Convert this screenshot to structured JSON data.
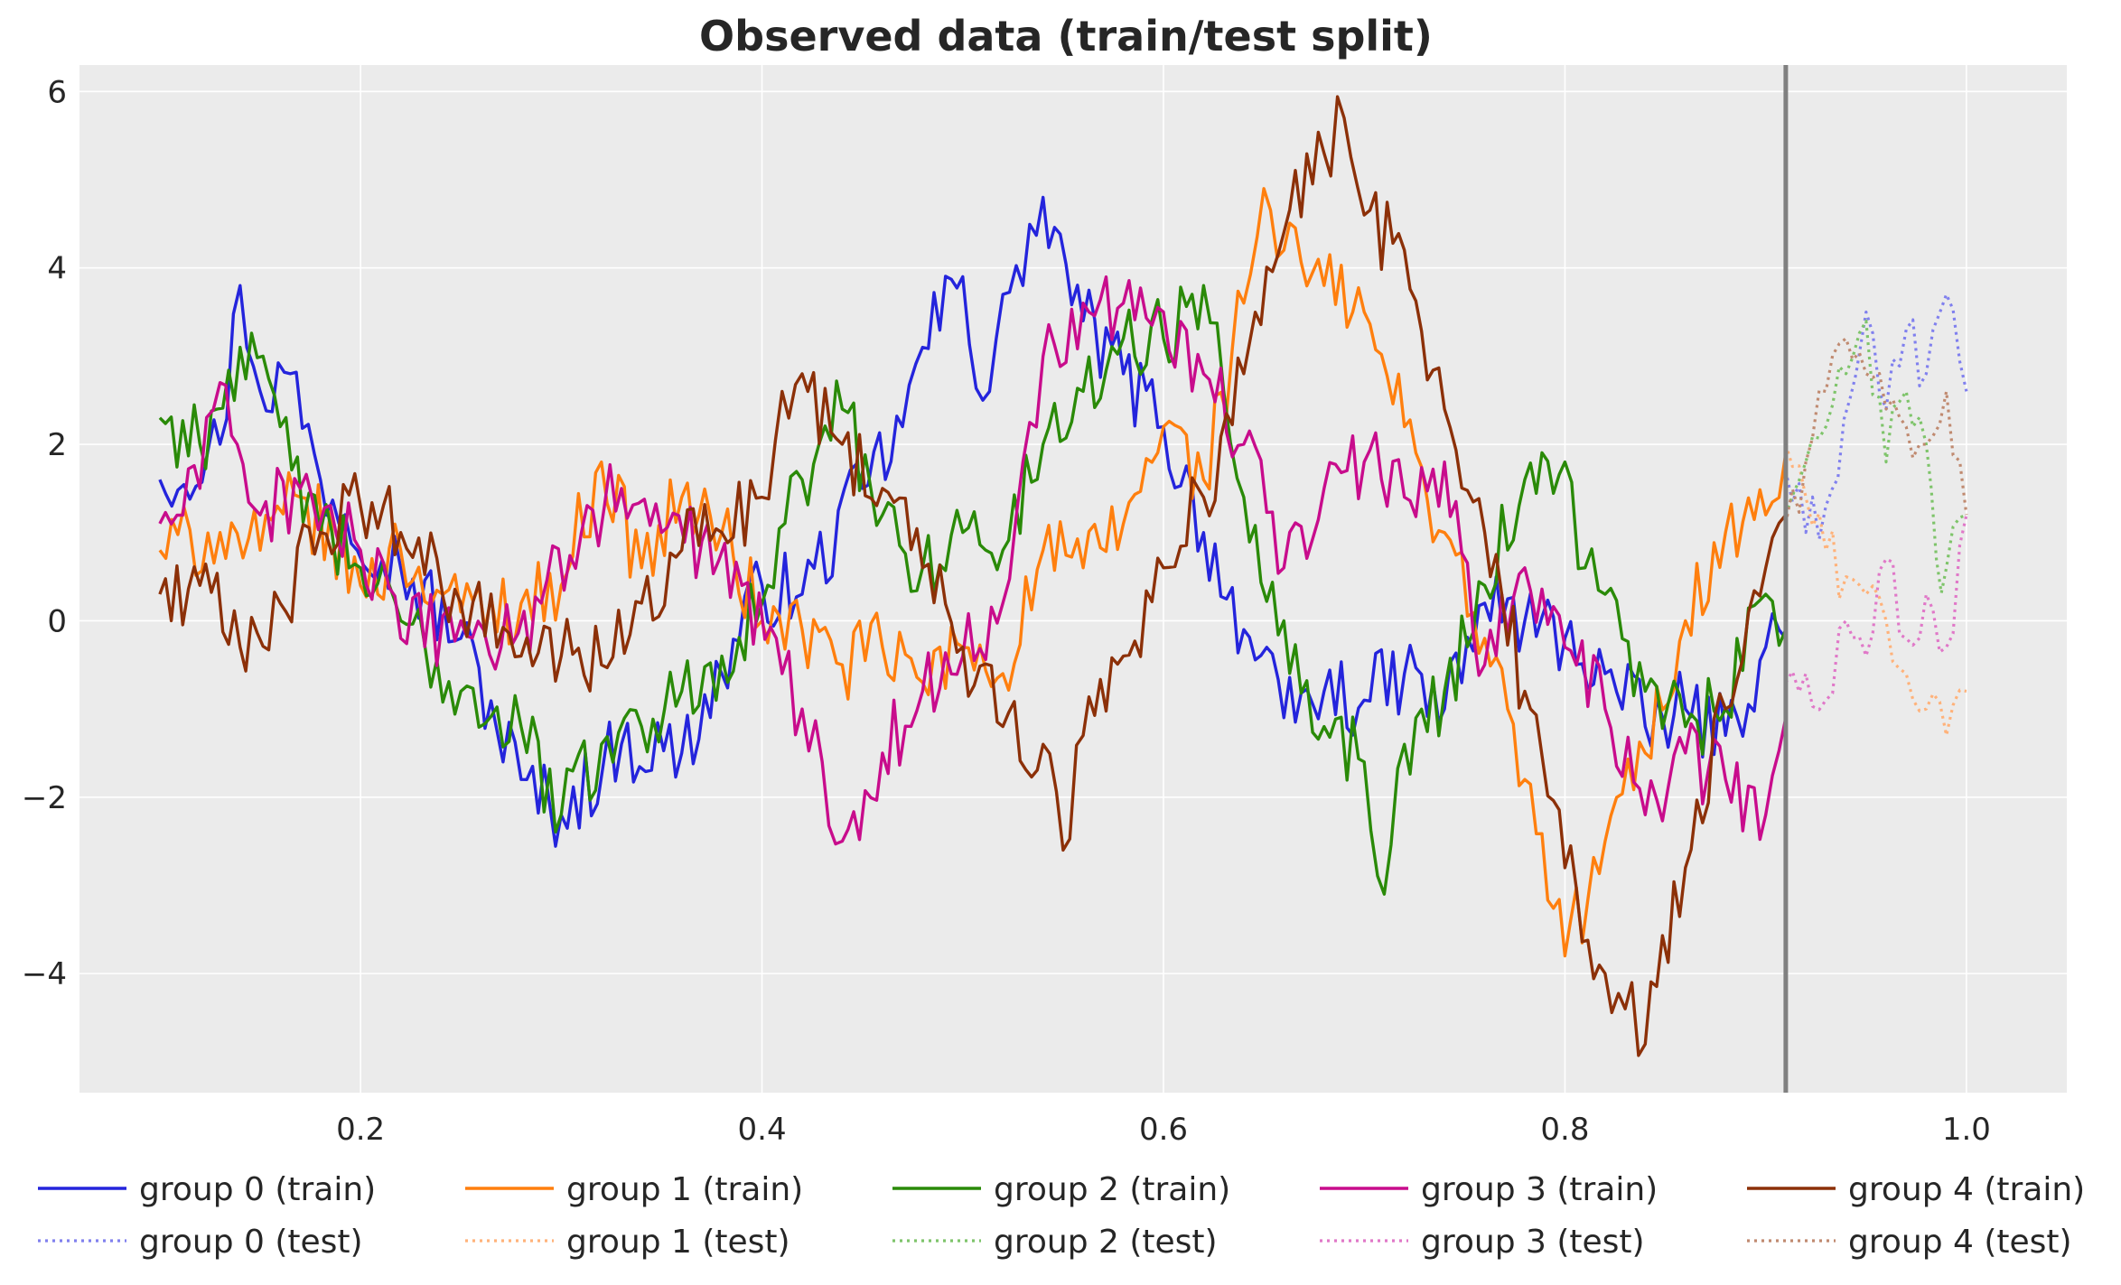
{
  "chart_data": {
    "type": "line",
    "title": "Observed data (train/test split)",
    "xlabel": "",
    "ylabel": "",
    "xlim": [
      0.06,
      1.05
    ],
    "ylim": [
      -5.35,
      6.3
    ],
    "xticks": [
      0.2,
      0.4,
      0.6,
      0.8,
      1.0
    ],
    "xtick_labels": [
      "0.2",
      "0.4",
      "0.6",
      "0.8",
      "1.0"
    ],
    "yticks": [
      -4,
      -2,
      0,
      2,
      4,
      6
    ],
    "ytick_labels": [
      "−4",
      "−2",
      "0",
      "2",
      "4",
      "6"
    ],
    "grid": true,
    "background": "#ebebeb",
    "split_x": 0.91,
    "split_color": "#808080",
    "legend_position": "bottom, 5 columns",
    "series": [
      {
        "name": "group 0 (train)",
        "group": 0,
        "part": "train",
        "style": "solid",
        "color": "#2424dc",
        "anchors": [
          [
            0.1,
            1.6
          ],
          [
            0.13,
            2.0
          ],
          [
            0.14,
            3.8
          ],
          [
            0.15,
            2.6
          ],
          [
            0.165,
            2.8
          ],
          [
            0.18,
            1.6
          ],
          [
            0.22,
            0.6
          ],
          [
            0.25,
            -0.2
          ],
          [
            0.28,
            -1.8
          ],
          [
            0.3,
            -2.2
          ],
          [
            0.33,
            -1.4
          ],
          [
            0.36,
            -1.5
          ],
          [
            0.38,
            -0.6
          ],
          [
            0.4,
            0.4
          ],
          [
            0.42,
            0.3
          ],
          [
            0.45,
            1.5
          ],
          [
            0.47,
            2.2
          ],
          [
            0.48,
            3.1
          ],
          [
            0.5,
            3.9
          ],
          [
            0.51,
            2.5
          ],
          [
            0.52,
            3.7
          ],
          [
            0.53,
            3.8
          ],
          [
            0.54,
            4.8
          ],
          [
            0.56,
            3.4
          ],
          [
            0.58,
            2.8
          ],
          [
            0.6,
            2.2
          ],
          [
            0.62,
            1.0
          ],
          [
            0.64,
            -0.1
          ],
          [
            0.66,
            -1.1
          ],
          [
            0.68,
            -0.8
          ],
          [
            0.7,
            -0.9
          ],
          [
            0.72,
            -0.6
          ],
          [
            0.74,
            -1.0
          ],
          [
            0.76,
            0.2
          ],
          [
            0.78,
            0.0
          ],
          [
            0.8,
            -0.2
          ],
          [
            0.82,
            -0.6
          ],
          [
            0.84,
            -1.2
          ],
          [
            0.86,
            -1.0
          ],
          [
            0.88,
            -1.3
          ],
          [
            0.9,
            -0.3
          ],
          [
            0.91,
            -0.2
          ]
        ]
      },
      {
        "name": "group 0 (test)",
        "group": 0,
        "part": "test",
        "style": "dotted",
        "color": "#8080ee",
        "anchors": [
          [
            0.91,
            1.7
          ],
          [
            0.92,
            1.0
          ],
          [
            0.93,
            1.3
          ],
          [
            0.945,
            2.8
          ],
          [
            0.95,
            3.5
          ],
          [
            0.96,
            2.4
          ],
          [
            0.97,
            3.3
          ],
          [
            0.98,
            2.8
          ],
          [
            0.99,
            3.7
          ],
          [
            1.0,
            2.6
          ]
        ]
      },
      {
        "name": "group 1 (train)",
        "group": 1,
        "part": "train",
        "style": "solid",
        "color": "#ff7f0e",
        "anchors": [
          [
            0.1,
            0.8
          ],
          [
            0.13,
            1.0
          ],
          [
            0.15,
            0.8
          ],
          [
            0.17,
            1.4
          ],
          [
            0.2,
            0.4
          ],
          [
            0.22,
            0.8
          ],
          [
            0.25,
            0.1
          ],
          [
            0.28,
            0.2
          ],
          [
            0.3,
            0.4
          ],
          [
            0.32,
            1.8
          ],
          [
            0.34,
            0.6
          ],
          [
            0.36,
            1.4
          ],
          [
            0.38,
            1.0
          ],
          [
            0.4,
            0.0
          ],
          [
            0.42,
            -0.1
          ],
          [
            0.44,
            -0.5
          ],
          [
            0.46,
            -0.3
          ],
          [
            0.48,
            -0.7
          ],
          [
            0.5,
            -0.3
          ],
          [
            0.52,
            -0.6
          ],
          [
            0.54,
            0.8
          ],
          [
            0.56,
            0.6
          ],
          [
            0.58,
            1.1
          ],
          [
            0.6,
            2.2
          ],
          [
            0.62,
            1.6
          ],
          [
            0.64,
            3.6
          ],
          [
            0.65,
            4.9
          ],
          [
            0.66,
            4.2
          ],
          [
            0.68,
            3.8
          ],
          [
            0.7,
            3.5
          ],
          [
            0.72,
            2.2
          ],
          [
            0.74,
            1.0
          ],
          [
            0.76,
            -0.2
          ],
          [
            0.78,
            -1.8
          ],
          [
            0.8,
            -3.8
          ],
          [
            0.82,
            -2.5
          ],
          [
            0.84,
            -1.5
          ],
          [
            0.86,
            0.0
          ],
          [
            0.88,
            1.0
          ],
          [
            0.9,
            1.2
          ],
          [
            0.91,
            1.9
          ]
        ]
      },
      {
        "name": "group 1 (test)",
        "group": 1,
        "part": "test",
        "style": "dotted",
        "color": "#ffb27a",
        "anchors": [
          [
            0.91,
            2.0
          ],
          [
            0.92,
            1.4
          ],
          [
            0.93,
            0.8
          ],
          [
            0.94,
            0.5
          ],
          [
            0.95,
            0.3
          ],
          [
            0.96,
            0.0
          ],
          [
            0.97,
            -0.6
          ],
          [
            0.98,
            -1.0
          ],
          [
            0.99,
            -1.3
          ],
          [
            1.0,
            -0.8
          ]
        ]
      },
      {
        "name": "group 2 (train)",
        "group": 2,
        "part": "train",
        "style": "solid",
        "color": "#2a8a08",
        "anchors": [
          [
            0.1,
            2.3
          ],
          [
            0.12,
            2.0
          ],
          [
            0.14,
            3.1
          ],
          [
            0.16,
            2.2
          ],
          [
            0.18,
            1.0
          ],
          [
            0.2,
            0.6
          ],
          [
            0.22,
            0.0
          ],
          [
            0.25,
            -0.8
          ],
          [
            0.28,
            -1.2
          ],
          [
            0.3,
            -2.2
          ],
          [
            0.32,
            -1.4
          ],
          [
            0.34,
            -1.2
          ],
          [
            0.36,
            -0.8
          ],
          [
            0.38,
            -0.4
          ],
          [
            0.4,
            0.2
          ],
          [
            0.42,
            1.6
          ],
          [
            0.44,
            2.4
          ],
          [
            0.46,
            1.2
          ],
          [
            0.48,
            0.6
          ],
          [
            0.5,
            1.0
          ],
          [
            0.52,
            0.8
          ],
          [
            0.54,
            2.0
          ],
          [
            0.56,
            2.6
          ],
          [
            0.58,
            3.2
          ],
          [
            0.6,
            3.2
          ],
          [
            0.62,
            3.8
          ],
          [
            0.63,
            2.6
          ],
          [
            0.64,
            1.4
          ],
          [
            0.66,
            0.0
          ],
          [
            0.68,
            -1.2
          ],
          [
            0.7,
            -1.6
          ],
          [
            0.71,
            -3.1
          ],
          [
            0.72,
            -1.4
          ],
          [
            0.74,
            -0.8
          ],
          [
            0.76,
            0.4
          ],
          [
            0.78,
            1.6
          ],
          [
            0.8,
            1.8
          ],
          [
            0.81,
            0.6
          ],
          [
            0.82,
            0.3
          ],
          [
            0.84,
            -0.8
          ],
          [
            0.86,
            -1.2
          ],
          [
            0.88,
            -1.0
          ],
          [
            0.9,
            0.3
          ],
          [
            0.91,
            -0.1
          ]
        ]
      },
      {
        "name": "group 2 (test)",
        "group": 2,
        "part": "test",
        "style": "dotted",
        "color": "#7ec46a",
        "anchors": [
          [
            0.91,
            1.2
          ],
          [
            0.92,
            1.8
          ],
          [
            0.93,
            2.2
          ],
          [
            0.94,
            2.8
          ],
          [
            0.95,
            3.4
          ],
          [
            0.96,
            1.8
          ],
          [
            0.97,
            2.6
          ],
          [
            0.98,
            2.0
          ],
          [
            0.985,
            0.7
          ],
          [
            0.99,
            0.6
          ],
          [
            1.0,
            1.2
          ]
        ]
      },
      {
        "name": "group 3 (train)",
        "group": 3,
        "part": "train",
        "style": "solid",
        "color": "#c80c8c",
        "anchors": [
          [
            0.1,
            1.1
          ],
          [
            0.12,
            1.5
          ],
          [
            0.13,
            2.7
          ],
          [
            0.15,
            1.2
          ],
          [
            0.17,
            1.5
          ],
          [
            0.2,
            0.8
          ],
          [
            0.22,
            -0.2
          ],
          [
            0.25,
            0.0
          ],
          [
            0.27,
            -0.3
          ],
          [
            0.29,
            0.2
          ],
          [
            0.31,
            1.0
          ],
          [
            0.33,
            1.5
          ],
          [
            0.35,
            1.0
          ],
          [
            0.37,
            0.9
          ],
          [
            0.39,
            0.4
          ],
          [
            0.41,
            -0.6
          ],
          [
            0.42,
            -1.0
          ],
          [
            0.43,
            -1.6
          ],
          [
            0.44,
            -2.5
          ],
          [
            0.46,
            -1.5
          ],
          [
            0.48,
            -0.8
          ],
          [
            0.5,
            -0.4
          ],
          [
            0.52,
            0.2
          ],
          [
            0.53,
            1.8
          ],
          [
            0.54,
            3.0
          ],
          [
            0.56,
            3.6
          ],
          [
            0.58,
            3.6
          ],
          [
            0.6,
            3.5
          ],
          [
            0.62,
            2.8
          ],
          [
            0.64,
            2.0
          ],
          [
            0.66,
            0.6
          ],
          [
            0.68,
            1.5
          ],
          [
            0.7,
            1.8
          ],
          [
            0.72,
            1.4
          ],
          [
            0.74,
            1.8
          ],
          [
            0.76,
            -0.5
          ],
          [
            0.78,
            0.6
          ],
          [
            0.8,
            -0.3
          ],
          [
            0.82,
            -1.0
          ],
          [
            0.84,
            -2.2
          ],
          [
            0.86,
            -1.5
          ],
          [
            0.88,
            -1.8
          ],
          [
            0.9,
            -2.2
          ],
          [
            0.91,
            -1.1
          ]
        ]
      },
      {
        "name": "group 3 (test)",
        "group": 3,
        "part": "test",
        "style": "dotted",
        "color": "#e078c8",
        "anchors": [
          [
            0.91,
            -0.7
          ],
          [
            0.92,
            -0.6
          ],
          [
            0.93,
            -0.9
          ],
          [
            0.94,
            0.0
          ],
          [
            0.95,
            -0.4
          ],
          [
            0.96,
            0.7
          ],
          [
            0.97,
            -0.2
          ],
          [
            0.98,
            0.3
          ],
          [
            0.99,
            -0.3
          ],
          [
            1.0,
            1.2
          ]
        ]
      },
      {
        "name": "group 4 (train)",
        "group": 4,
        "part": "train",
        "style": "solid",
        "color": "#8c3008",
        "anchors": [
          [
            0.1,
            0.3
          ],
          [
            0.12,
            0.4
          ],
          [
            0.14,
            -0.3
          ],
          [
            0.16,
            0.2
          ],
          [
            0.18,
            1.0
          ],
          [
            0.2,
            1.3
          ],
          [
            0.22,
            1.0
          ],
          [
            0.25,
            0.2
          ],
          [
            0.28,
            -0.4
          ],
          [
            0.3,
            -0.4
          ],
          [
            0.32,
            -0.5
          ],
          [
            0.34,
            0.2
          ],
          [
            0.36,
            0.8
          ],
          [
            0.38,
            1.0
          ],
          [
            0.4,
            1.4
          ],
          [
            0.41,
            2.6
          ],
          [
            0.42,
            2.8
          ],
          [
            0.44,
            2.0
          ],
          [
            0.46,
            1.5
          ],
          [
            0.48,
            0.6
          ],
          [
            0.5,
            -0.3
          ],
          [
            0.52,
            -1.2
          ],
          [
            0.54,
            -1.4
          ],
          [
            0.55,
            -2.6
          ],
          [
            0.56,
            -1.3
          ],
          [
            0.58,
            -0.4
          ],
          [
            0.6,
            0.6
          ],
          [
            0.62,
            1.4
          ],
          [
            0.64,
            2.8
          ],
          [
            0.66,
            4.4
          ],
          [
            0.68,
            5.3
          ],
          [
            0.69,
            5.7
          ],
          [
            0.7,
            4.6
          ],
          [
            0.72,
            4.2
          ],
          [
            0.74,
            2.4
          ],
          [
            0.76,
            1.0
          ],
          [
            0.78,
            -0.8
          ],
          [
            0.8,
            -2.8
          ],
          [
            0.82,
            -4.0
          ],
          [
            0.83,
            -4.4
          ],
          [
            0.84,
            -4.8
          ],
          [
            0.86,
            -2.8
          ],
          [
            0.88,
            -1.0
          ],
          [
            0.9,
            0.6
          ],
          [
            0.91,
            1.2
          ]
        ]
      },
      {
        "name": "group 4 (test)",
        "group": 4,
        "part": "test",
        "style": "dotted",
        "color": "#c08a70",
        "anchors": [
          [
            0.91,
            1.1
          ],
          [
            0.92,
            1.8
          ],
          [
            0.93,
            2.6
          ],
          [
            0.94,
            3.2
          ],
          [
            0.95,
            2.8
          ],
          [
            0.96,
            2.4
          ],
          [
            0.97,
            2.2
          ],
          [
            0.98,
            2.0
          ],
          [
            0.99,
            2.6
          ],
          [
            1.0,
            1.2
          ]
        ]
      }
    ],
    "legend": [
      {
        "label": "group 0 (train)",
        "color": "#2424dc",
        "style": "solid"
      },
      {
        "label": "group 0 (test)",
        "color": "#8080ee",
        "style": "dotted"
      },
      {
        "label": "group 1 (train)",
        "color": "#ff7f0e",
        "style": "solid"
      },
      {
        "label": "group 1 (test)",
        "color": "#ffb27a",
        "style": "dotted"
      },
      {
        "label": "group 2 (train)",
        "color": "#2a8a08",
        "style": "solid"
      },
      {
        "label": "group 2 (test)",
        "color": "#7ec46a",
        "style": "dotted"
      },
      {
        "label": "group 3 (train)",
        "color": "#c80c8c",
        "style": "solid"
      },
      {
        "label": "group 3 (test)",
        "color": "#e078c8",
        "style": "dotted"
      },
      {
        "label": "group 4 (train)",
        "color": "#8c3008",
        "style": "solid"
      },
      {
        "label": "group 4 (test)",
        "color": "#c08a70",
        "style": "dotted"
      }
    ]
  }
}
